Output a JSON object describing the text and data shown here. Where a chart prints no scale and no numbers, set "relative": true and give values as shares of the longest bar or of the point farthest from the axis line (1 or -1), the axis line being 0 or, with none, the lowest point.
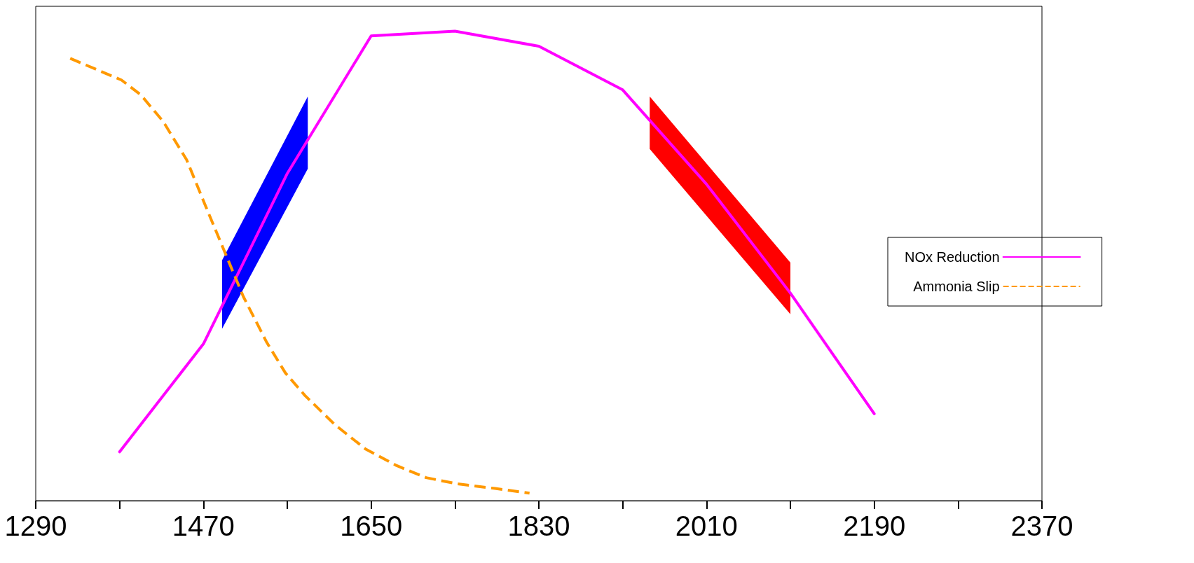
{
  "chart_data": {
    "type": "line",
    "relative": true,
    "legend": "right",
    "grid": false,
    "xlim": [
      1290,
      2370
    ],
    "xticks": [
      1290,
      {
        "value": 1380,
        "label": null
      },
      1470,
      {
        "value": 1560,
        "label": null
      },
      1650,
      {
        "value": 1740,
        "label": null
      },
      1830,
      {
        "value": 1920,
        "label": null
      },
      2010,
      {
        "value": 2100,
        "label": null
      },
      2190,
      {
        "value": 2280,
        "label": null
      },
      2370
    ],
    "series": [
      {
        "name": "NOx Reduction",
        "color": "#ff00ff",
        "line_style": "solid",
        "x": [
          1380,
          1470,
          1560,
          1650,
          1740,
          1830,
          1920,
          2010,
          2100,
          2190
        ],
        "values": [
          0.104,
          0.334,
          0.697,
          0.99,
          1.0,
          0.968,
          0.875,
          0.674,
          0.442,
          0.185
        ]
      },
      {
        "name": "Ammonia Slip",
        "color": "#ff9900",
        "line_style": "dashed",
        "x": [
          1327,
          1382,
          1403,
          1427,
          1452,
          1472,
          1489,
          1513,
          1538,
          1558,
          1579,
          1611,
          1644,
          1677,
          1709,
          1742,
          1783,
          1820
        ],
        "values": [
          0.942,
          0.896,
          0.864,
          0.807,
          0.726,
          0.629,
          0.548,
          0.434,
          0.337,
          0.272,
          0.224,
          0.162,
          0.11,
          0.075,
          0.049,
          0.036,
          0.026,
          0.016
        ]
      },
      {
        "type": "area",
        "color": "#0000ff",
        "x": [
          1490,
          1582,
          1582,
          1490
        ],
        "values": [
          0.512,
          0.861,
          0.707,
          0.366
        ]
      },
      {
        "type": "area",
        "color": "#ff0000",
        "x": [
          1949,
          2100,
          2100,
          1949
        ],
        "values": [
          0.861,
          0.507,
          0.397,
          0.749
        ]
      }
    ]
  }
}
